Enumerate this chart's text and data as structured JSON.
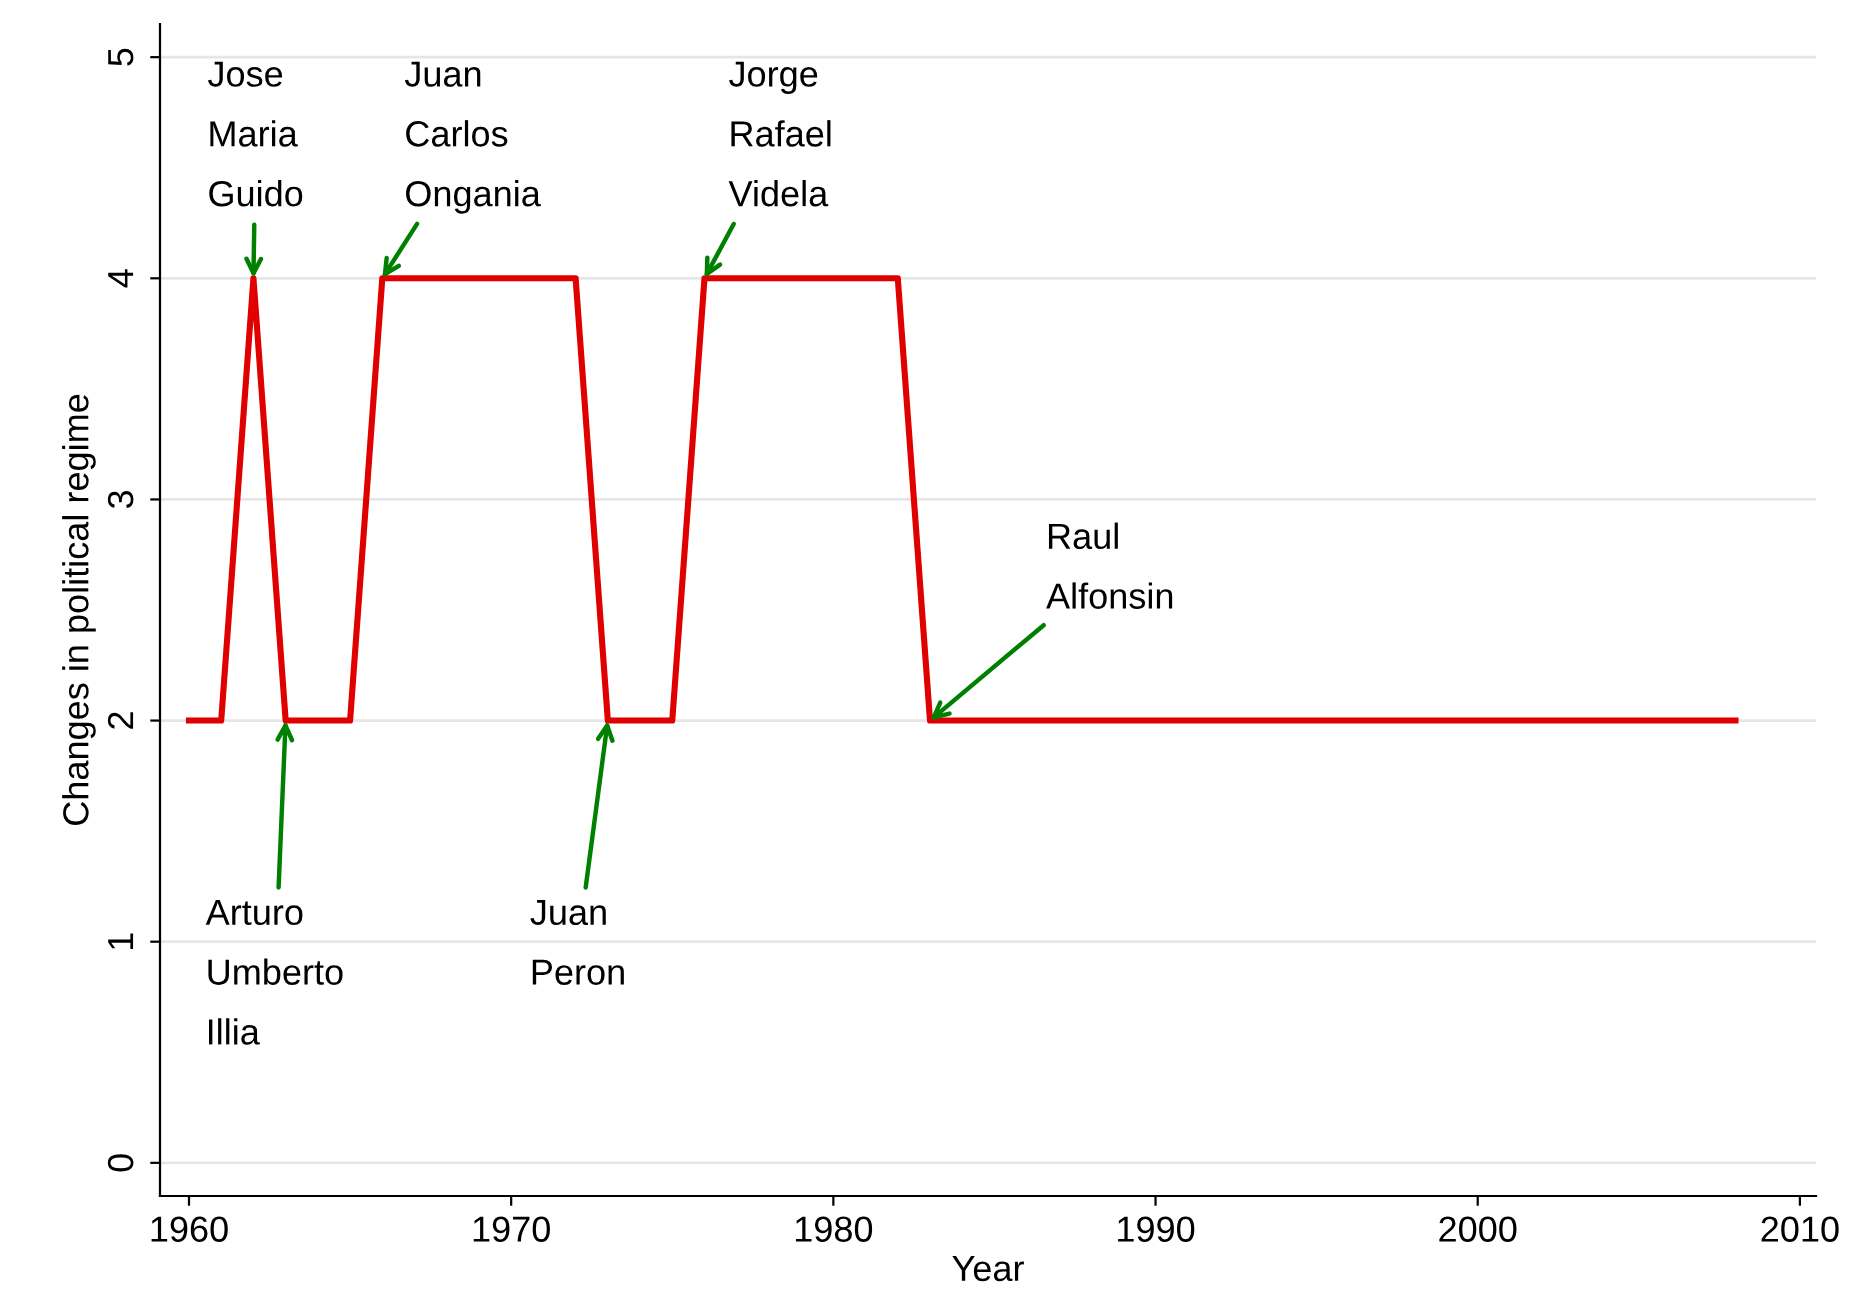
{
  "chart_data": {
    "type": "line",
    "xlabel": "Year",
    "ylabel": "Changes in political regime",
    "series": [
      {
        "color": "#e00000",
        "x": [
          1960,
          1961,
          1962,
          1963,
          1965,
          1966,
          1972,
          1973,
          1975,
          1976,
          1982,
          1983,
          2008
        ],
        "values": [
          2,
          2,
          4,
          2,
          2,
          4,
          4,
          2,
          2,
          4,
          4,
          2,
          2
        ]
      }
    ],
    "xlim": [
      1959.1,
      2010.5
    ],
    "xticks": [
      1960,
      1970,
      1980,
      1990,
      2000,
      2010
    ],
    "ylim": [
      -0.15,
      5.15
    ],
    "yticks": [
      0,
      1,
      2,
      3,
      4,
      5
    ],
    "grid": "y",
    "legend": false,
    "marker": "none",
    "line_style": "solid",
    "annotations": [
      {
        "text": "Jose\nMaria\nGuido",
        "x": 1962,
        "y": 4
      },
      {
        "text": "Arturo\nUmberto\nIllia",
        "x": 1963,
        "y": 2
      },
      {
        "text": "Juan\nCarlos\nOngania",
        "x": 1966,
        "y": 4
      },
      {
        "text": "Juan\nPeron",
        "x": 1973,
        "y": 2
      },
      {
        "text": "Jorge\nRafael\nVidela",
        "x": 1976,
        "y": 4
      },
      {
        "text": "Raul\nAlfonsin",
        "x": 1983,
        "y": 2
      }
    ]
  }
}
